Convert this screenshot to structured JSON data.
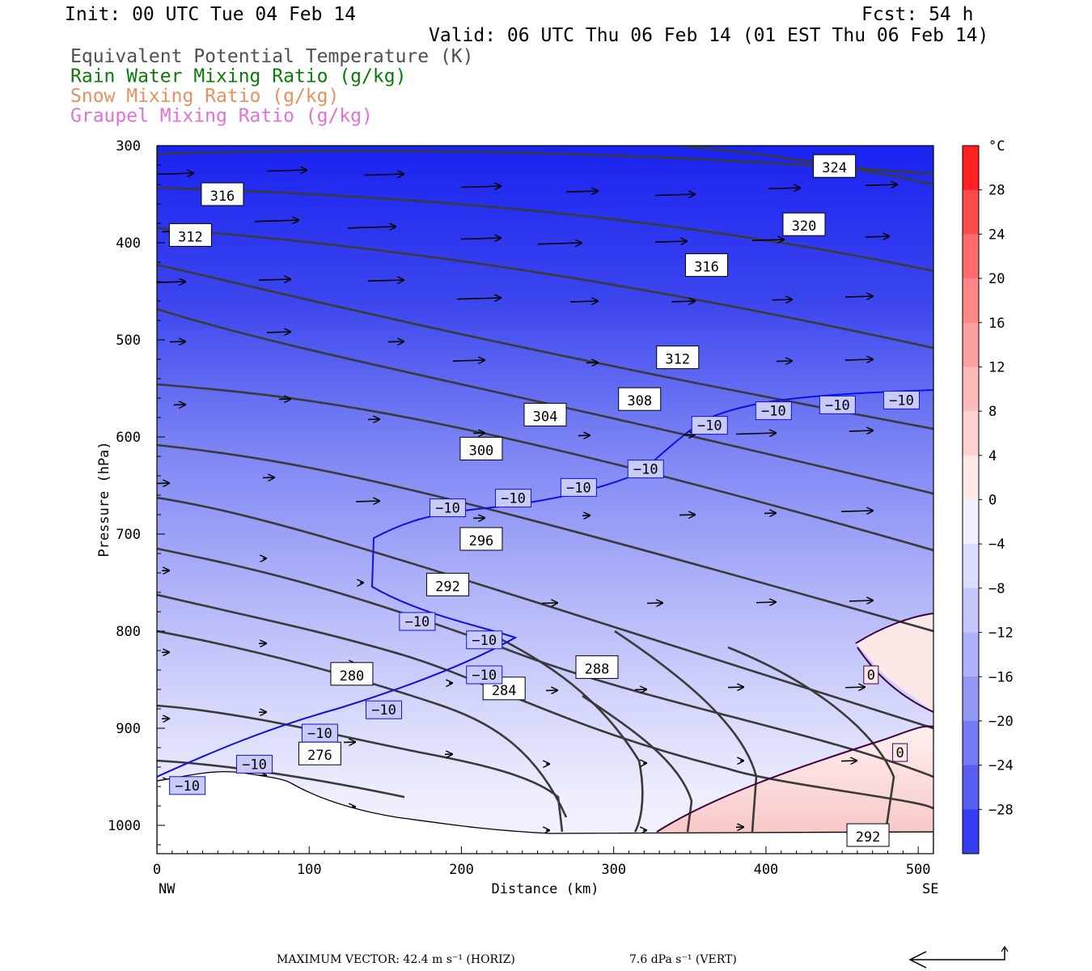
{
  "header": {
    "init": "Init: 00 UTC Tue 04 Feb 14",
    "fcst": "Fcst:   54 h",
    "valid": "Valid: 06 UTC Thu 06 Feb 14 (01 EST Thu 06 Feb 14)"
  },
  "legend_lines": [
    {
      "text": "Equivalent Potential Temperature (K)",
      "color": "#505050"
    },
    {
      "text": "Rain Water Mixing Ratio (g/kg)",
      "color": "#0a7a0a"
    },
    {
      "text": "Snow Mixing Ratio (g/kg)",
      "color": "#e89060"
    },
    {
      "text": "Graupel Mixing Ratio (g/kg)",
      "color": "#e070d8"
    }
  ],
  "colorbar": {
    "unit": "°C",
    "ticks": [
      "28",
      "24",
      "20",
      "16",
      "12",
      "8",
      "4",
      "0",
      "−4",
      "−8",
      "−12",
      "−16",
      "−20",
      "−24",
      "−28"
    ]
  },
  "footer": {
    "max_vector": "MAXIMUM VECTOR:  42.4 m s⁻¹ (HORIZ)",
    "vert": "7.6 dPa s⁻¹ (VERT)"
  },
  "chart_data": {
    "type": "cross-section",
    "xlabel": "Distance (km)",
    "ylabel": "Pressure (hPa)",
    "x_ticks": [
      0,
      100,
      200,
      300,
      400,
      500
    ],
    "y_ticks": [
      300,
      400,
      500,
      600,
      700,
      800,
      900,
      1000
    ],
    "xlim": [
      0,
      510
    ],
    "ylim": [
      300,
      1030
    ],
    "x_end_labels": {
      "left": "NW",
      "right": "SE"
    },
    "theta_e_labels": [
      {
        "value": "324",
        "x": 445,
        "p": 321
      },
      {
        "value": "316",
        "x": 43,
        "p": 350
      },
      {
        "value": "320",
        "x": 425,
        "p": 381
      },
      {
        "value": "312",
        "x": 22,
        "p": 392
      },
      {
        "value": "316",
        "x": 361,
        "p": 423
      },
      {
        "value": "312",
        "x": 342,
        "p": 518
      },
      {
        "value": "308",
        "x": 317,
        "p": 561
      },
      {
        "value": "304",
        "x": 255,
        "p": 577
      },
      {
        "value": "300",
        "x": 213,
        "p": 612
      },
      {
        "value": "296",
        "x": 213,
        "p": 705
      },
      {
        "value": "292",
        "x": 191,
        "p": 752
      },
      {
        "value": "288",
        "x": 289,
        "p": 837
      },
      {
        "value": "280",
        "x": 128,
        "p": 844
      },
      {
        "value": "284",
        "x": 228,
        "p": 859
      },
      {
        "value": "276",
        "x": 107,
        "p": 926
      },
      {
        "value": "292",
        "x": 467,
        "p": 1010
      }
    ],
    "temp_labels": [
      {
        "value": "−10",
        "x": 20,
        "p": 959
      },
      {
        "value": "−10",
        "x": 64,
        "p": 937
      },
      {
        "value": "−10",
        "x": 107,
        "p": 905
      },
      {
        "value": "−10",
        "x": 149,
        "p": 881
      },
      {
        "value": "−10",
        "x": 215,
        "p": 845
      },
      {
        "value": "−10",
        "x": 215,
        "p": 809
      },
      {
        "value": "−10",
        "x": 171,
        "p": 790
      },
      {
        "value": "−10",
        "x": 191,
        "p": 673
      },
      {
        "value": "−10",
        "x": 234,
        "p": 663
      },
      {
        "value": "−10",
        "x": 277,
        "p": 652
      },
      {
        "value": "−10",
        "x": 321,
        "p": 633
      },
      {
        "value": "−10",
        "x": 363,
        "p": 588
      },
      {
        "value": "−10",
        "x": 405,
        "p": 573
      },
      {
        "value": "−10",
        "x": 447,
        "p": 567
      },
      {
        "value": "−10",
        "x": 489,
        "p": 562
      },
      {
        "value": "0",
        "x": 469,
        "p": 845
      },
      {
        "value": "0",
        "x": 488,
        "p": 925
      }
    ]
  }
}
